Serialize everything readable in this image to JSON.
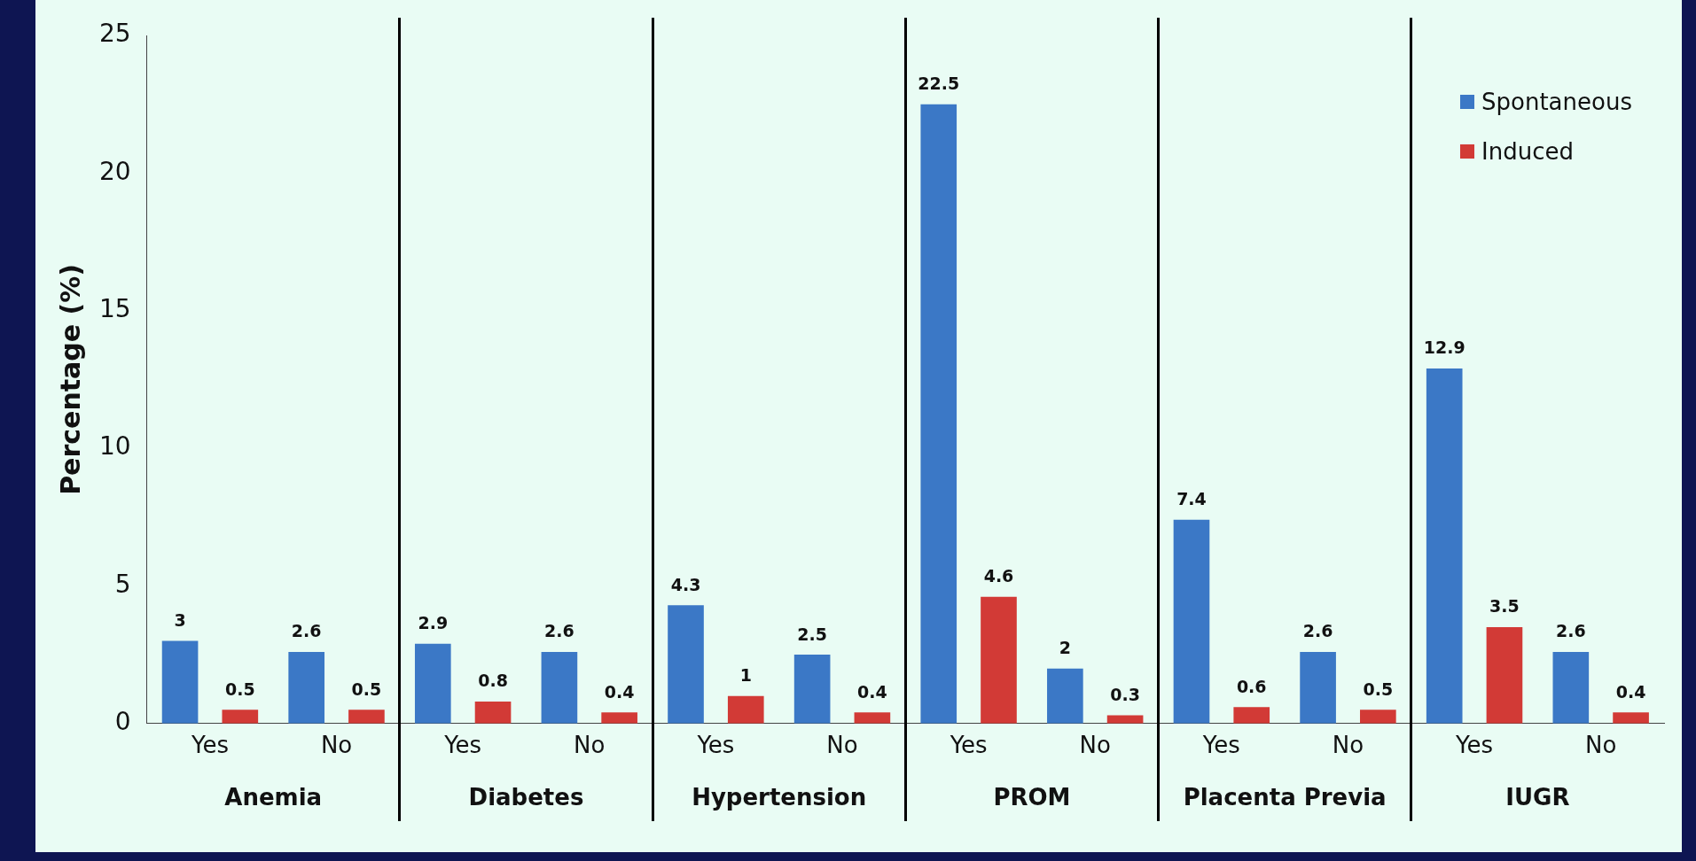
{
  "chart_data": {
    "type": "bar",
    "ylabel": "Percentage (%)",
    "categories": [
      "Yes",
      "No",
      "Yes",
      "No",
      "Yes",
      "No",
      "Yes",
      "No",
      "Yes",
      "No",
      "Yes",
      "No"
    ],
    "series": [
      {
        "name": "Spontaneous",
        "color": "#3b78c6",
        "values": [
          3,
          2.6,
          2.9,
          2.6,
          4.3,
          2.5,
          22.5,
          2,
          7.4,
          2.6,
          12.9,
          2.6
        ]
      },
      {
        "name": "Induced",
        "color": "#d23a36",
        "values": [
          0.5,
          0.5,
          0.8,
          0.4,
          1,
          0.4,
          4.6,
          0.3,
          0.6,
          0.5,
          3.5,
          0.4
        ]
      }
    ],
    "annotations": [
      "Anemia",
      "Diabetes",
      "Hypertension",
      "PROM",
      "Placenta Previa",
      "IUGR"
    ],
    "ylim": [
      0,
      25
    ],
    "yticks": [
      0,
      5,
      10,
      15,
      20,
      25
    ],
    "grid": false,
    "legend": "top right",
    "data_labels": true
  }
}
